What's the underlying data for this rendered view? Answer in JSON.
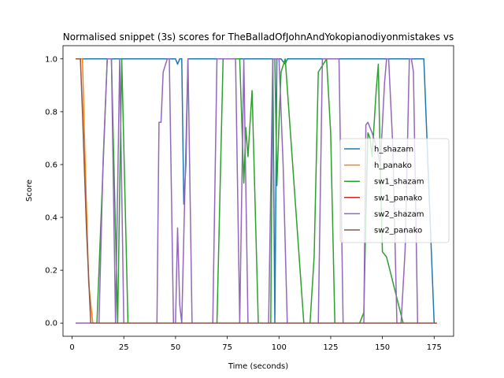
{
  "chart_data": {
    "type": "line",
    "title": "Normalised snippet (3s) scores for TheBalladOfJohnAndYokopianodiyonmistakes vs",
    "xlabel": "Time (seconds)",
    "ylabel": "Score",
    "xlim": [
      -4.4,
      184.4
    ],
    "ylim": [
      -0.05,
      1.05
    ],
    "xticks": [
      0,
      25,
      50,
      75,
      100,
      125,
      150,
      175
    ],
    "yticks": [
      0.0,
      0.2,
      0.4,
      0.6,
      0.8,
      1.0
    ],
    "ytick_labels": [
      "0.0",
      "0.2",
      "0.4",
      "0.6",
      "0.8",
      "1.0"
    ],
    "grid": false,
    "legend_position": "center-right",
    "series": [
      {
        "name": "h_shazam",
        "color": "#1f77b4",
        "x": [
          2,
          50,
          51,
          52,
          53,
          54,
          55,
          56,
          97,
          98,
          99,
          100,
          101,
          102,
          103,
          104,
          170,
          175,
          176
        ],
        "y": [
          1,
          1,
          0.98,
          1,
          1,
          0.45,
          0.6,
          1,
          1,
          0,
          1,
          1,
          1,
          0.99,
          0.98,
          1,
          1,
          0,
          0
        ]
      },
      {
        "name": "h_panako",
        "color": "#ff7f0e",
        "x": [
          2,
          5,
          6,
          8,
          10,
          176
        ],
        "y": [
          1,
          1,
          0.7,
          0.15,
          0,
          0
        ]
      },
      {
        "name": "sw1_shazam",
        "color": "#2ca02c",
        "x": [
          2,
          12,
          17,
          19,
          22,
          24,
          27,
          29,
          31,
          33,
          36,
          39,
          48,
          50,
          52,
          57,
          59,
          70,
          73,
          81,
          83,
          84,
          85,
          87,
          90,
          92,
          94,
          96,
          97,
          98,
          99,
          100,
          101,
          103,
          112,
          115,
          117,
          119,
          123,
          125,
          127,
          129,
          131,
          136,
          139,
          141,
          142,
          143,
          144,
          145,
          147,
          148,
          149,
          150,
          152,
          160,
          162,
          164,
          166,
          168,
          170,
          172,
          176
        ],
        "y": [
          0,
          0,
          1,
          1,
          0,
          1,
          0,
          0,
          0,
          0,
          0,
          0,
          0,
          0,
          0,
          0,
          0,
          0,
          1,
          1,
          0.53,
          0.74,
          0.63,
          0.88,
          0,
          0,
          0,
          0,
          1,
          1,
          0.52,
          0.76,
          0.95,
          1,
          0,
          0,
          0.25,
          0.95,
          1,
          0.72,
          0,
          0,
          0,
          0,
          0,
          0.04,
          0.4,
          0.72,
          0.7,
          0.63,
          0.88,
          0.98,
          0.58,
          0.27,
          0.25,
          0,
          0,
          0,
          0,
          0,
          0,
          0,
          0
        ]
      },
      {
        "name": "sw1_panako",
        "color": "#d62728",
        "x": [
          2,
          176
        ],
        "y": [
          0,
          0
        ]
      },
      {
        "name": "sw2_shazam",
        "color": "#9467bd",
        "x": [
          2,
          13,
          15,
          17,
          19,
          21,
          23,
          25,
          28,
          30,
          35,
          38,
          41,
          42,
          43,
          44,
          46,
          47,
          49,
          50,
          51,
          52,
          53,
          56,
          58,
          68,
          70,
          79,
          81,
          83,
          85,
          95,
          97,
          100,
          102,
          104,
          107,
          110,
          113,
          115,
          119,
          121,
          123,
          127,
          129,
          131,
          139,
          141,
          142,
          143,
          145,
          147,
          149,
          151,
          152,
          153,
          155,
          157,
          159,
          161,
          163,
          164,
          165,
          167,
          169,
          171,
          173,
          175,
          176
        ],
        "y": [
          0,
          0,
          0.62,
          1,
          1,
          0,
          1,
          0,
          0,
          0,
          0,
          0,
          0,
          0.76,
          0.76,
          0.95,
          1,
          1,
          0,
          0,
          0.36,
          0.07,
          0,
          1,
          0,
          0,
          1,
          1,
          0,
          1,
          0,
          0,
          1,
          1,
          0.6,
          0,
          0,
          0,
          0,
          0,
          0,
          1,
          1,
          1,
          1,
          0,
          0,
          0,
          0.75,
          0.76,
          0.72,
          0.67,
          0.6,
          0.91,
          1,
          1,
          0.67,
          0,
          0,
          0.28,
          1,
          1,
          0.95,
          0,
          0,
          0,
          0,
          0,
          0
        ]
      },
      {
        "name": "sw2_panako",
        "color": "#8c564b",
        "x": [
          2,
          4,
          5,
          7,
          9,
          176
        ],
        "y": [
          1,
          1,
          0.8,
          0.35,
          0,
          0
        ]
      }
    ]
  }
}
